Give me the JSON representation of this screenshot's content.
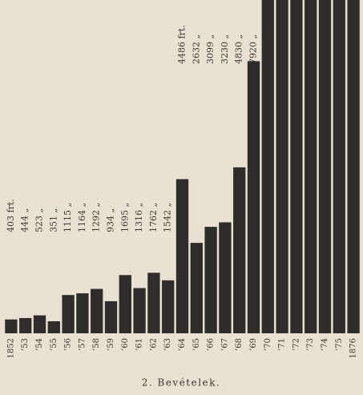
{
  "chart_data": {
    "type": "bar",
    "title": "2. Bevételek.",
    "categories": [
      "1852",
      "’53",
      "’54",
      "’55",
      "’56",
      "’57",
      "’58",
      "’59",
      "’60",
      "’61",
      "’62",
      "’63",
      "’64",
      "’65",
      "’66",
      "’67",
      "’68",
      "’69",
      "’70",
      "’71",
      "’72",
      "’73",
      "’74",
      "’75",
      "1876"
    ],
    "values": [
      403,
      444,
      523,
      351,
      1115,
      1164,
      1292,
      934,
      1695,
      1316,
      1762,
      1542,
      4486,
      2632,
      3099,
      3230,
      4830,
      7920,
      10000,
      10000,
      10000,
      10000,
      10000,
      10000,
      10000
    ],
    "value_labels": [
      "403 frt.",
      "444 „",
      "523 „",
      "351 „",
      "1115 „",
      "1164 „",
      "1292 „",
      "934 „",
      "1695 „",
      "1316 „",
      "1762 „",
      "1542 „",
      "4486 frt.",
      "2632 „",
      "3099 „",
      "3230 „",
      "4830 „",
      "7920 „",
      null,
      null,
      null,
      null,
      null,
      null,
      null
    ],
    "color": "#2f2d2b",
    "ylim": [
      0,
      9700
    ]
  }
}
